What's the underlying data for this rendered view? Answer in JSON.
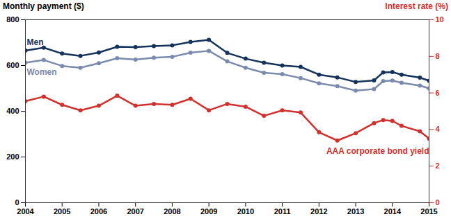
{
  "chart_data": {
    "type": "line",
    "y_label": "Monthly payment ($)",
    "y2_label": "Interest rate (%)",
    "x": [
      2004,
      2004.5,
      2005,
      2005.5,
      2006,
      2006.5,
      2007,
      2007.5,
      2008,
      2008.5,
      2009,
      2009.5,
      2010,
      2010.5,
      2011,
      2011.5,
      2012,
      2012.5,
      2013,
      2013.5,
      2013.75,
      2014,
      2014.25,
      2014.75,
      2015
    ],
    "xlim": [
      2004,
      2015
    ],
    "xticks": [
      2004,
      2005,
      2006,
      2007,
      2008,
      2009,
      2010,
      2011,
      2012,
      2013,
      2014,
      2015
    ],
    "ylim": [
      0,
      800
    ],
    "yticks": [
      0,
      200,
      400,
      600,
      800
    ],
    "y2lim": [
      0,
      10
    ],
    "y2ticks": [
      0,
      2,
      4,
      6,
      8,
      10
    ],
    "grid": false,
    "marker": "circle",
    "series": [
      {
        "name": "Men",
        "color": "#14325c",
        "values": [
          665,
          678,
          652,
          642,
          657,
          682,
          680,
          685,
          688,
          703,
          712,
          655,
          630,
          612,
          600,
          594,
          560,
          548,
          528,
          535,
          570,
          571,
          560,
          547,
          533
        ]
      },
      {
        "name": "Women",
        "color": "#7b8bae",
        "values": [
          612,
          624,
          598,
          590,
          610,
          632,
          626,
          634,
          638,
          656,
          664,
          618,
          590,
          568,
          562,
          545,
          522,
          510,
          490,
          497,
          532,
          534,
          524,
          512,
          500
        ]
      },
      {
        "name": "AAA corporate bond yield",
        "color": "#d0312d",
        "axis": "y2",
        "values": [
          5.55,
          5.8,
          5.35,
          5.05,
          5.3,
          5.85,
          5.3,
          5.4,
          5.35,
          5.68,
          5.05,
          5.4,
          5.25,
          4.75,
          5.05,
          4.93,
          3.85,
          3.4,
          3.8,
          4.35,
          4.52,
          4.47,
          4.2,
          3.9,
          3.5
        ]
      }
    ]
  }
}
